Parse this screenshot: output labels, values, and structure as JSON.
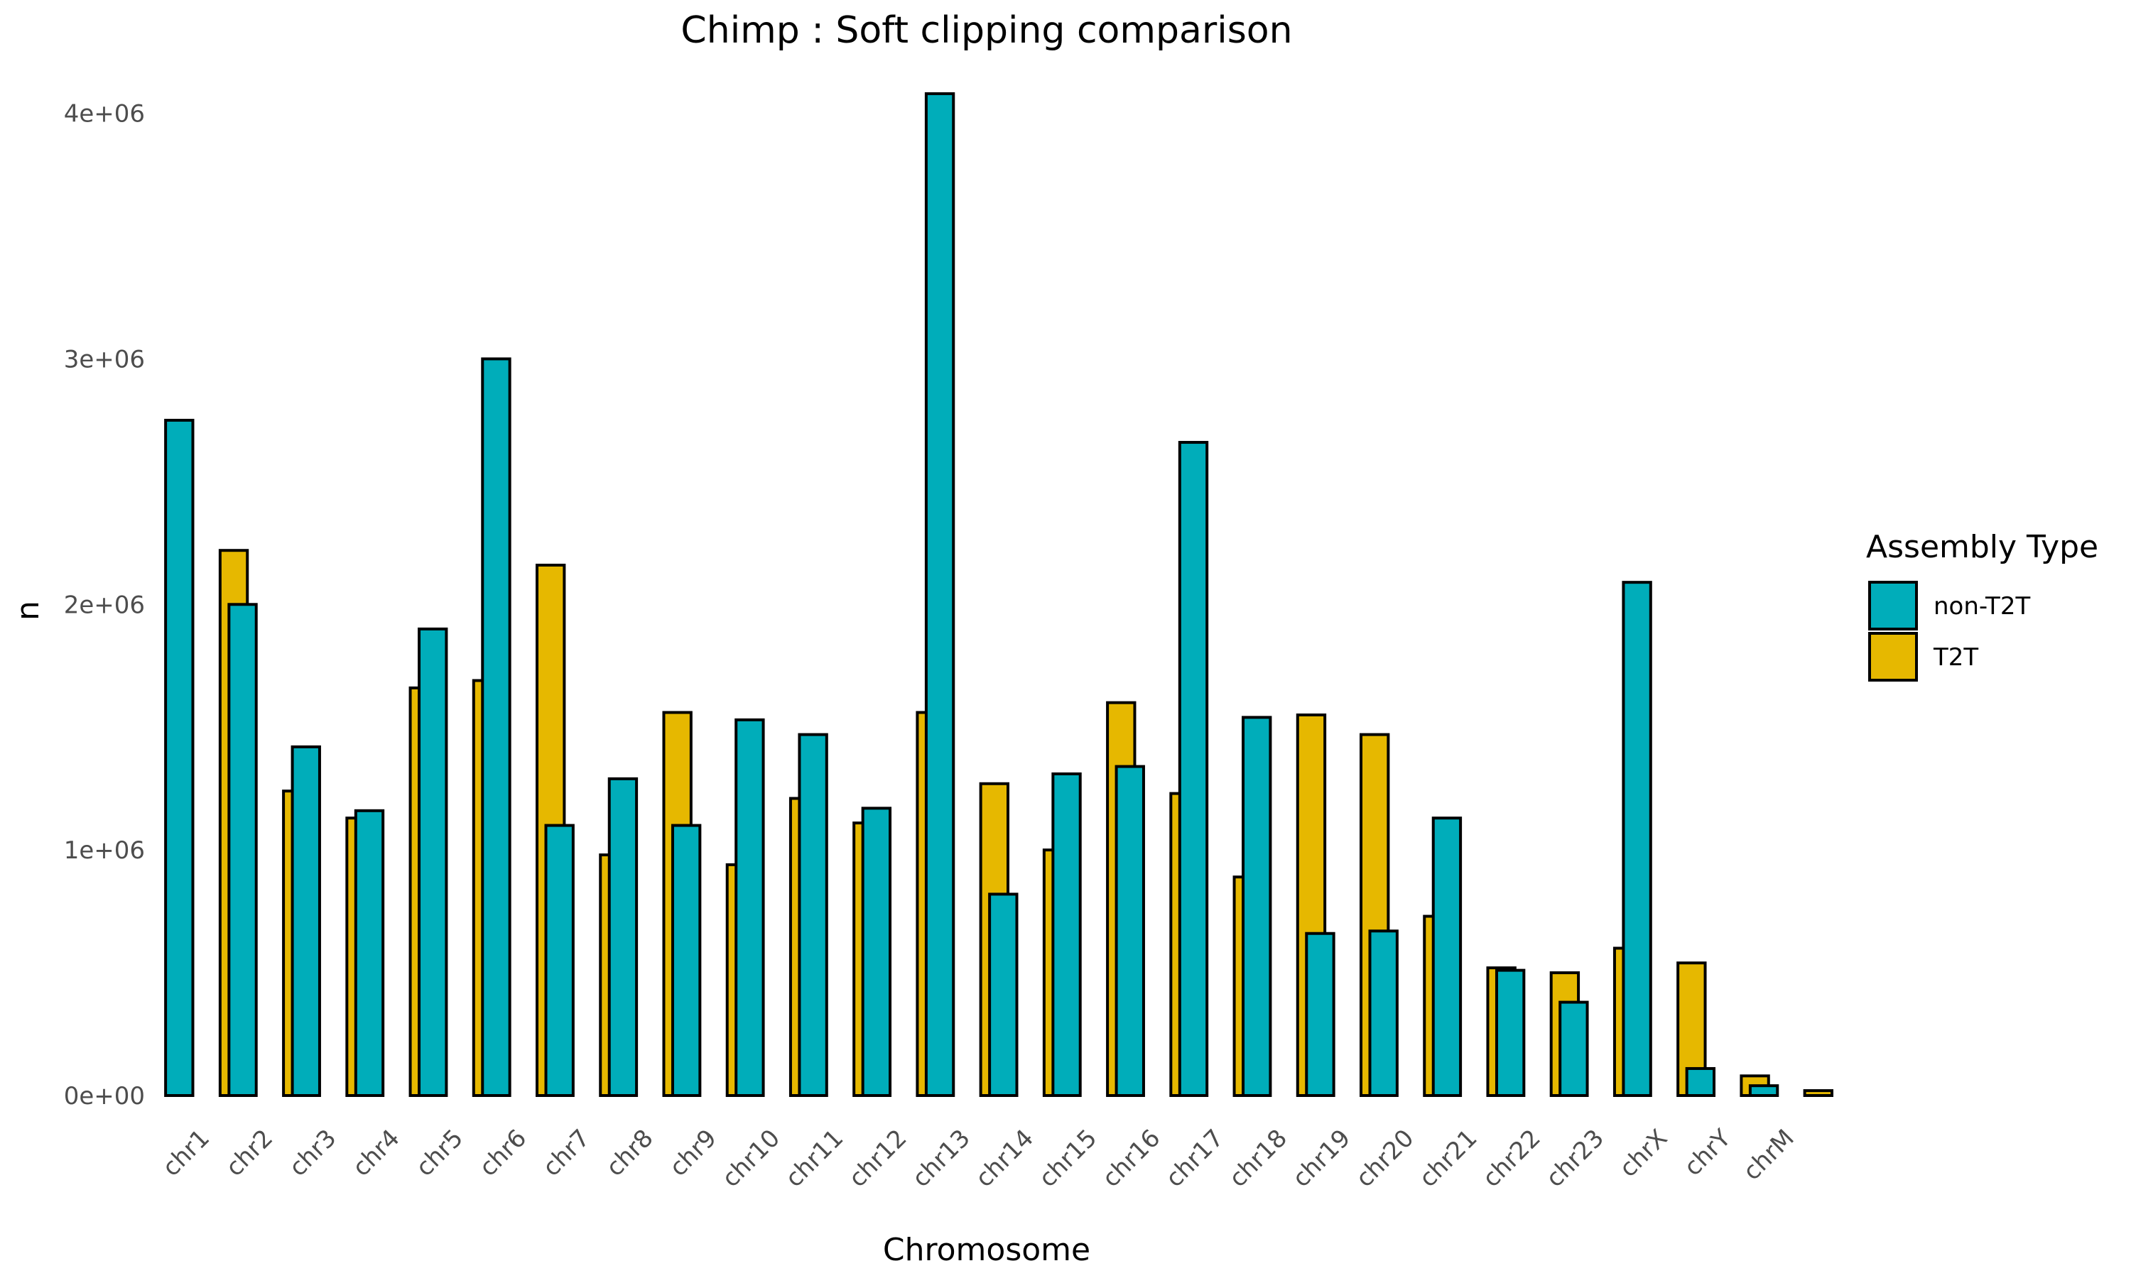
{
  "chart_data": {
    "type": "bar",
    "title": "Chimp : Soft clipping comparison",
    "xlabel": "Chromosome",
    "ylabel": "n",
    "ylim": [
      0,
      4100000
    ],
    "yticks": [
      0,
      1000000,
      2000000,
      3000000,
      4000000
    ],
    "ytick_labels": [
      "0e+00",
      "1e+06",
      "2e+06",
      "3e+06",
      "4e+06"
    ],
    "grid": false,
    "legend_title": "Assembly Type",
    "legend_position": "right",
    "categories": [
      "chr1",
      "chr2",
      "chr3",
      "chr4",
      "chr5",
      "chr6",
      "chr7",
      "chr8",
      "chr9",
      "chr10",
      "chr11",
      "chr12",
      "chr13",
      "chr14",
      "chr15",
      "chr16",
      "chr17",
      "chr18",
      "chr19",
      "chr20",
      "chr21",
      "chr22",
      "chr23",
      "chrX",
      "chrY",
      "chrM"
    ],
    "series": [
      {
        "name": "non-T2T",
        "color": "#00ADBA",
        "values": [
          2750000,
          2000000,
          1420000,
          1160000,
          1900000,
          3000000,
          1100000,
          1290000,
          1100000,
          1530000,
          1470000,
          1170000,
          4080000,
          820000,
          1310000,
          1340000,
          2660000,
          1540000,
          660000,
          670000,
          1130000,
          510000,
          380000,
          2090000,
          110000,
          40000
        ]
      },
      {
        "name": "T2T",
        "color": "#E6B800",
        "values": [
          2220000,
          1240000,
          1130000,
          1660000,
          1690000,
          2160000,
          980000,
          1560000,
          940000,
          1210000,
          1110000,
          1560000,
          1270000,
          1000000,
          1600000,
          1230000,
          890000,
          1550000,
          1470000,
          730000,
          520000,
          500000,
          600000,
          540000,
          80000,
          20000
        ]
      }
    ]
  }
}
